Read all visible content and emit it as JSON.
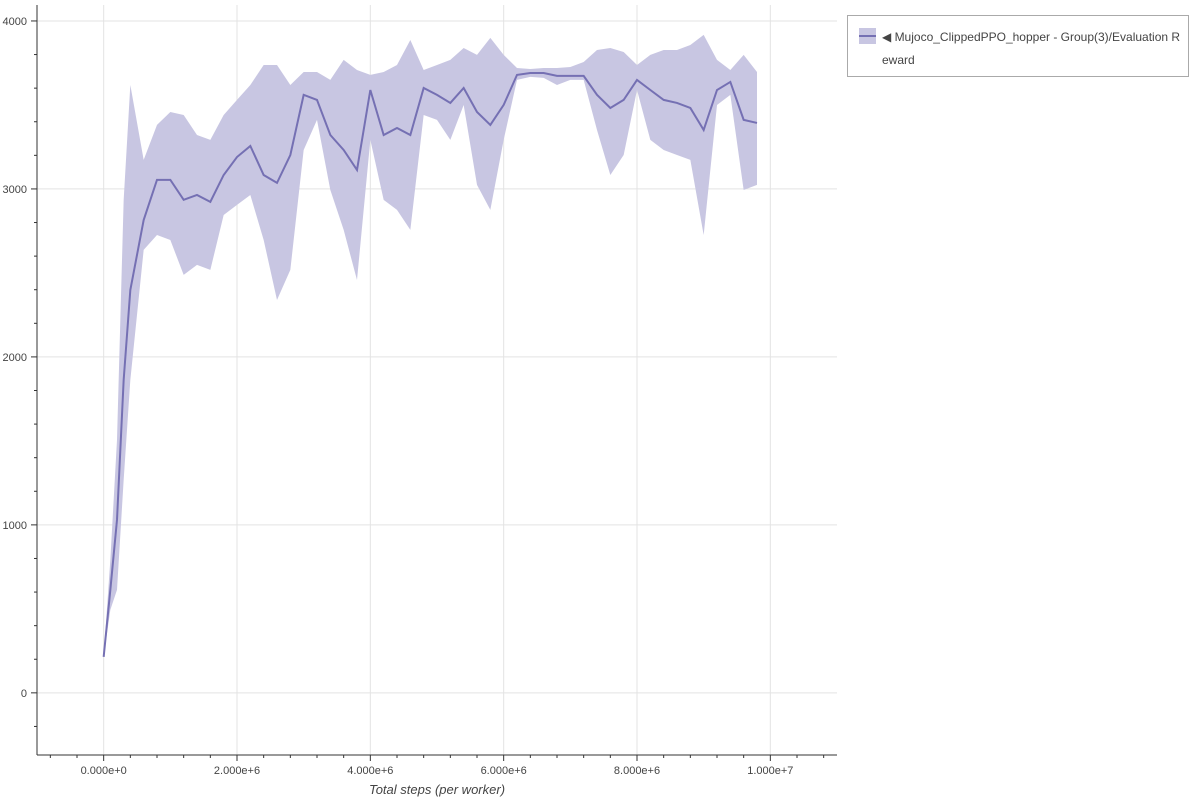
{
  "chart_data": {
    "type": "line",
    "title": "",
    "xlabel": "Total steps (per worker)",
    "ylabel": "",
    "xlim": [
      -1000000,
      11000000
    ],
    "ylim": [
      -370,
      4095
    ],
    "grid": true,
    "legend_placement": "outside-top-right",
    "x_ticks": [
      0,
      2000000,
      4000000,
      6000000,
      8000000,
      10000000
    ],
    "x_tick_labels": [
      "0.000e+0",
      "2.000e+6",
      "4.000e+6",
      "6.000e+6",
      "8.000e+6",
      "1.000e+7"
    ],
    "y_ticks": [
      0,
      1000,
      2000,
      3000,
      4000
    ],
    "y_tick_labels": [
      "0",
      "1000",
      "2000",
      "3000",
      "4000"
    ],
    "colors": {
      "line": "#7570b3",
      "band": "#c8c6e2"
    },
    "series": [
      {
        "name": "◀ Mujoco_ClippedPPO_hopper - Group(3)/Evaluation Reward",
        "x": [
          0,
          100000,
          200000,
          300000,
          400000,
          600000,
          800000,
          1000000,
          1200000,
          1400000,
          1600000,
          1800000,
          2000000,
          2200000,
          2400000,
          2600000,
          2800000,
          3000000,
          3200000,
          3400000,
          3600000,
          3800000,
          4000000,
          4200000,
          4400000,
          4600000,
          4800000,
          5000000,
          5200000,
          5400000,
          5600000,
          5800000,
          6000000,
          6200000,
          6400000,
          6600000,
          6800000,
          7000000,
          7200000,
          7400000,
          7600000,
          7800000,
          8000000,
          8200000,
          8400000,
          8600000,
          8800000,
          9000000,
          9200000,
          9400000,
          9600000,
          9800000
        ],
        "mean": [
          214,
          613,
          1030,
          1863,
          2399,
          2815,
          3054,
          3054,
          2935,
          2964,
          2923,
          3083,
          3190,
          3256,
          3083,
          3036,
          3202,
          3560,
          3530,
          3321,
          3232,
          3113,
          3589,
          3321,
          3363,
          3321,
          3601,
          3560,
          3512,
          3601,
          3458,
          3381,
          3500,
          3679,
          3690,
          3690,
          3673,
          3673,
          3673,
          3560,
          3482,
          3530,
          3649,
          3589,
          3530,
          3512,
          3482,
          3351,
          3589,
          3637,
          3411,
          3393
        ],
        "lower": [
          214,
          494,
          613,
          1268,
          1863,
          2637,
          2726,
          2696,
          2488,
          2548,
          2518,
          2845,
          2905,
          2964,
          2696,
          2339,
          2518,
          3232,
          3411,
          2994,
          2756,
          2458,
          3292,
          2935,
          2875,
          2756,
          3440,
          3411,
          3292,
          3500,
          3024,
          2875,
          3292,
          3649,
          3667,
          3661,
          3619,
          3649,
          3649,
          3351,
          3083,
          3202,
          3589,
          3292,
          3232,
          3202,
          3173,
          2726,
          3500,
          3560,
          2994,
          3024
        ],
        "upper": [
          214,
          792,
          1506,
          2935,
          3619,
          3173,
          3381,
          3458,
          3440,
          3321,
          3292,
          3440,
          3530,
          3619,
          3738,
          3738,
          3619,
          3696,
          3696,
          3649,
          3768,
          3708,
          3679,
          3696,
          3738,
          3887,
          3708,
          3738,
          3768,
          3839,
          3798,
          3899,
          3798,
          3720,
          3714,
          3720,
          3720,
          3726,
          3756,
          3827,
          3839,
          3815,
          3738,
          3798,
          3827,
          3827,
          3857,
          3917,
          3768,
          3708,
          3798,
          3696
        ]
      }
    ]
  }
}
